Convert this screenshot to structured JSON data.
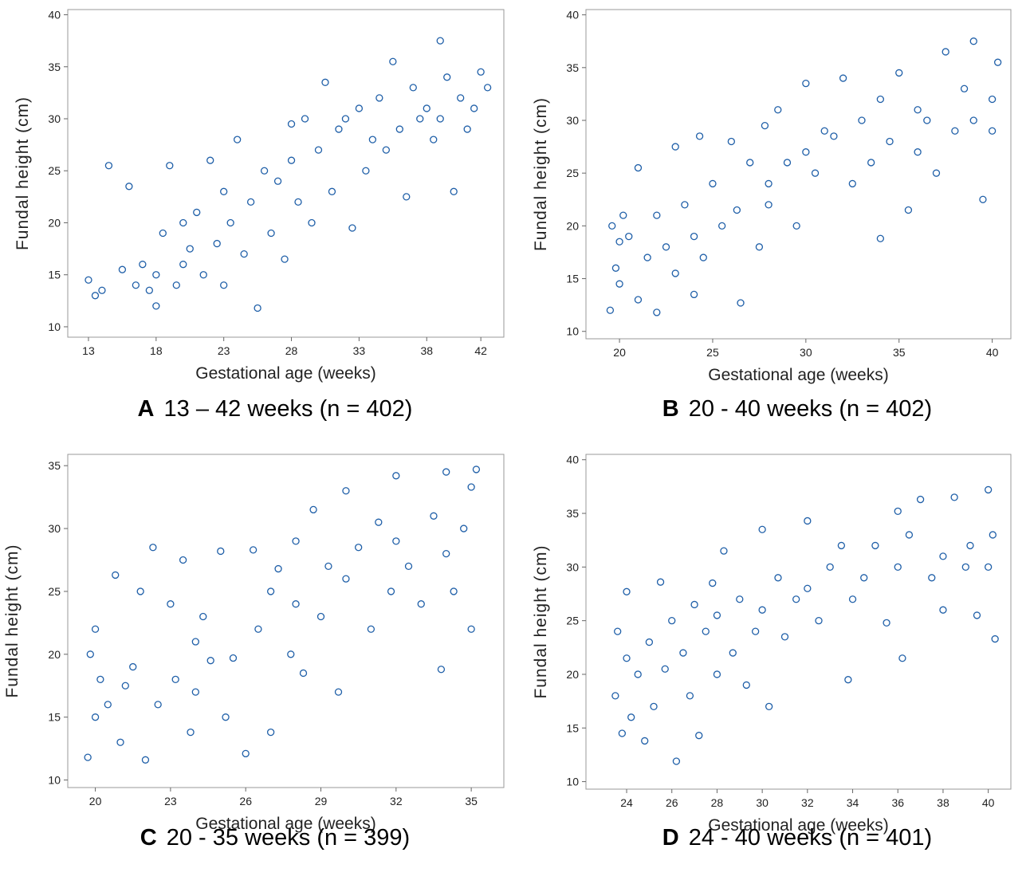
{
  "chart_data": [
    {
      "type": "scatter",
      "panel_label": "A",
      "title": "13 – 42 weeks (n = 402)",
      "x_label": "Gestational age (weeks)",
      "y_label": "Fundal height (cm)",
      "color": "#1f5fa8",
      "xlim": [
        11.47,
        43.7
      ],
      "ylim": [
        9,
        40.5
      ],
      "xticks": [
        13,
        18,
        23,
        28,
        33,
        38,
        42
      ],
      "yticks": [
        10,
        15,
        20,
        25,
        30,
        35,
        40
      ],
      "x": [
        13,
        13.5,
        14,
        14.5,
        15.5,
        16,
        16.5,
        17,
        17.5,
        18,
        18,
        18.5,
        19,
        19.5,
        20,
        20,
        20.5,
        21,
        21.5,
        22,
        22.5,
        23,
        23,
        23.5,
        24,
        24.5,
        25,
        25.5,
        26,
        26.5,
        27,
        27.5,
        28,
        28,
        28.5,
        29,
        29.5,
        30,
        30.5,
        31,
        31.5,
        32,
        32.5,
        33,
        33.5,
        34,
        34.5,
        35,
        35.5,
        36,
        36.5,
        37,
        37.5,
        38,
        38.5,
        39,
        39,
        39.5,
        40,
        40.5,
        41,
        41.5,
        42,
        42.5
      ],
      "values": [
        14.5,
        13,
        13.5,
        25.5,
        15.5,
        23.5,
        14,
        16,
        13.5,
        15,
        12,
        19,
        25.5,
        14,
        20,
        16,
        17.5,
        21,
        15,
        26,
        18,
        23,
        14,
        20,
        28,
        17,
        22,
        11.8,
        25,
        19,
        24,
        16.5,
        26,
        29.5,
        22,
        30,
        20,
        27,
        33.5,
        23,
        29,
        30,
        19.5,
        31,
        25,
        28,
        32,
        27,
        35.5,
        29,
        22.5,
        33,
        30,
        31,
        28,
        37.5,
        30,
        34,
        23,
        32,
        29,
        31,
        34.5,
        33
      ]
    },
    {
      "type": "scatter",
      "panel_label": "B",
      "title": "20  -  40 weeks (n = 402)",
      "x_label": "Gestational age (weeks)",
      "y_label": "Fundal height (cm)",
      "color": "#1f5fa8",
      "xlim": [
        18.2,
        41.0
      ],
      "ylim": [
        9.3,
        40.5
      ],
      "xticks": [
        20,
        25,
        30,
        35,
        40
      ],
      "yticks": [
        10,
        15,
        20,
        25,
        30,
        35,
        40
      ],
      "x": [
        19.5,
        19.6,
        19.8,
        20,
        20,
        20.2,
        20.5,
        21,
        21,
        21.5,
        22,
        22,
        22.5,
        23,
        23,
        23.5,
        24,
        24,
        24.3,
        24.5,
        25,
        25.5,
        26,
        26.3,
        26.5,
        27,
        27.5,
        27.8,
        28,
        28,
        28.5,
        29,
        29.5,
        30,
        30,
        30.5,
        31,
        31.5,
        32,
        32.5,
        33,
        33.5,
        34,
        34,
        34.5,
        35,
        35.5,
        36,
        36,
        36.5,
        37,
        37.5,
        38,
        38.5,
        39,
        39,
        39.5,
        40,
        40,
        40.3
      ],
      "values": [
        12,
        20,
        16,
        18.5,
        14.5,
        21,
        19,
        25.5,
        13,
        17,
        11.8,
        21,
        18,
        27.5,
        15.5,
        22,
        13.5,
        19,
        28.5,
        17,
        24,
        20,
        28,
        21.5,
        12.7,
        26,
        18,
        29.5,
        24,
        22,
        31,
        26,
        20,
        33.5,
        27,
        25,
        29,
        28.5,
        34,
        24,
        30,
        26,
        18.8,
        32,
        28,
        34.5,
        21.5,
        31,
        27,
        30,
        25,
        36.5,
        29,
        33,
        30,
        37.5,
        22.5,
        32,
        29,
        35.5
      ]
    },
    {
      "type": "scatter",
      "panel_label": "C",
      "title": "20 - 35 weeks (n = 399)",
      "x_label": "Gestational age (weeks)",
      "y_label": "Fundal height (cm)",
      "color": "#1f5fa8",
      "xlim": [
        18.9,
        36.3
      ],
      "ylim": [
        9.4,
        35.9
      ],
      "xticks": [
        20,
        23,
        26,
        29,
        32,
        35
      ],
      "yticks": [
        10,
        15,
        20,
        25,
        30,
        35
      ],
      "x": [
        19.7,
        19.8,
        20,
        20,
        20.2,
        20.5,
        20.8,
        21,
        21.2,
        21.5,
        21.8,
        22,
        22.3,
        22.5,
        23,
        23.2,
        23.5,
        23.8,
        24,
        24,
        24.3,
        24.6,
        25,
        25.2,
        25.5,
        26,
        26.3,
        26.5,
        27,
        27,
        27.3,
        27.8,
        28,
        28,
        28.3,
        28.7,
        29,
        29.3,
        29.7,
        30,
        30,
        30.5,
        31,
        31.3,
        31.8,
        32,
        32,
        32.5,
        33,
        33.5,
        33.8,
        34,
        34,
        34.3,
        34.7,
        35,
        35,
        35.2
      ],
      "values": [
        11.8,
        20,
        15,
        22,
        18,
        16,
        26.3,
        13,
        17.5,
        19,
        25,
        11.6,
        28.5,
        16,
        24,
        18,
        27.5,
        13.8,
        21,
        17,
        23,
        19.5,
        28.2,
        15,
        19.7,
        12.1,
        28.3,
        22,
        25,
        13.8,
        26.8,
        20,
        24,
        29,
        18.5,
        31.5,
        23,
        27,
        17,
        33,
        26,
        28.5,
        22,
        30.5,
        25,
        34.2,
        29,
        27,
        24,
        31,
        18.8,
        28,
        34.5,
        25,
        30,
        33.3,
        22,
        34.7
      ]
    },
    {
      "type": "scatter",
      "panel_label": "D",
      "title": "24 - 40 weeks (n = 401)",
      "x_label": "Gestational age (weeks)",
      "y_label": "Fundal height (cm)",
      "color": "#1f5fa8",
      "xlim": [
        22.2,
        41.0
      ],
      "ylim": [
        9.3,
        40.5
      ],
      "xticks": [
        24,
        26,
        28,
        30,
        32,
        34,
        36,
        38,
        40
      ],
      "yticks": [
        10,
        15,
        20,
        25,
        30,
        35,
        40
      ],
      "x": [
        23.5,
        23.6,
        23.8,
        24,
        24,
        24.2,
        24.5,
        24.8,
        25,
        25.2,
        25.5,
        25.7,
        26,
        26.2,
        26.5,
        26.8,
        27,
        27.2,
        27.5,
        27.8,
        28,
        28,
        28.3,
        28.7,
        29,
        29.3,
        29.7,
        30,
        30,
        30.3,
        30.7,
        31,
        31.5,
        32,
        32,
        32.5,
        33,
        33.5,
        33.8,
        34,
        34.5,
        35,
        35.5,
        36,
        36,
        36.2,
        36.5,
        37,
        37.5,
        38,
        38,
        38.5,
        39,
        39.2,
        39.5,
        40,
        40,
        40.2,
        40.3
      ],
      "values": [
        18,
        24,
        14.5,
        21.5,
        27.7,
        16,
        20,
        13.8,
        23,
        17,
        28.6,
        20.5,
        25,
        11.9,
        22,
        18,
        26.5,
        14.3,
        24,
        28.5,
        20,
        25.5,
        31.5,
        22,
        27,
        19,
        24,
        33.5,
        26,
        17,
        29,
        23.5,
        27,
        34.3,
        28,
        25,
        30,
        32,
        19.5,
        27,
        29,
        32,
        24.8,
        35.2,
        30,
        21.5,
        33,
        36.3,
        29,
        31,
        26,
        36.5,
        30,
        32,
        25.5,
        37.2,
        30,
        33,
        23.3
      ]
    }
  ]
}
